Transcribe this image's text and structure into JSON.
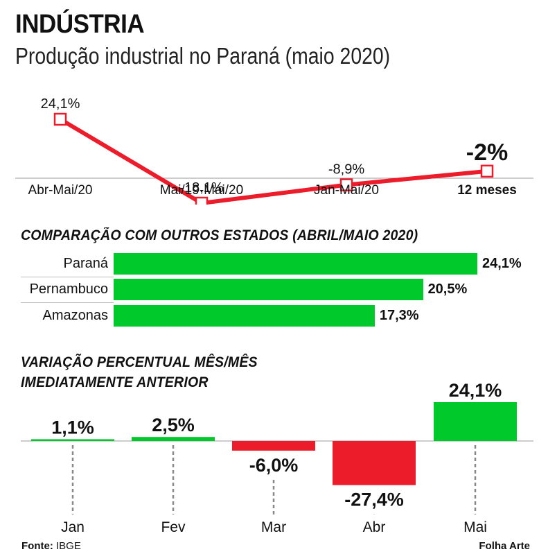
{
  "title": "INDÚSTRIA",
  "subtitle": "Produção industrial no Paraná (maio 2020)",
  "colors": {
    "red": "#ec1c2b",
    "green": "#00c92c"
  },
  "chart_data": [
    {
      "type": "line",
      "categories": [
        "Abr-Mai/20",
        "Mai/19-Mai/20",
        "Jan-Mai/20",
        "12 meses"
      ],
      "values": [
        24.1,
        -18.1,
        -8.9,
        -2
      ],
      "value_labels": [
        "24,1%",
        "-18,1%",
        "-8,9%",
        "-2%"
      ],
      "color": "#ec1c2b"
    },
    {
      "type": "bar",
      "title": "COMPARAÇÃO COM OUTROS ESTADOS (ABRIL/MAIO 2020)",
      "orientation": "horizontal",
      "categories": [
        "Paraná",
        "Pernambuco",
        "Amazonas"
      ],
      "values": [
        24.1,
        20.5,
        17.3
      ],
      "value_labels": [
        "24,1%",
        "20,5%",
        "17,3%"
      ],
      "color": "#00c92c"
    },
    {
      "type": "bar",
      "title_lines": [
        "VARIAÇÃO PERCENTUAL MÊS/MÊS",
        "IMEDIATAMENTE ANTERIOR"
      ],
      "categories": [
        "Jan",
        "Fev",
        "Mar",
        "Abr",
        "Mai"
      ],
      "values": [
        1.1,
        2.5,
        -6.0,
        -27.4,
        24.1
      ],
      "value_labels": [
        "1,1%",
        "2,5%",
        "-6,0%",
        "-27,4%",
        "24,1%"
      ]
    }
  ],
  "footer": {
    "source_label": "Fonte:",
    "source_value": "IBGE",
    "credit": "Folha Arte"
  }
}
